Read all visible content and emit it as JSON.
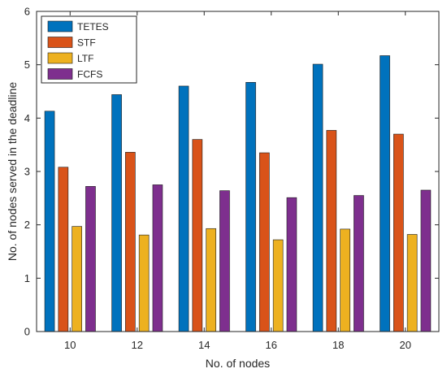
{
  "chart_data": {
    "type": "bar",
    "categories": [
      "10",
      "12",
      "14",
      "16",
      "18",
      "20"
    ],
    "series": [
      {
        "name": "TETES",
        "color": "#0072BD",
        "values": [
          4.13,
          4.44,
          4.6,
          4.67,
          5.01,
          5.17
        ]
      },
      {
        "name": "STF",
        "color": "#D95319",
        "values": [
          3.08,
          3.36,
          3.6,
          3.35,
          3.77,
          3.7
        ]
      },
      {
        "name": "LTF",
        "color": "#EDB120",
        "values": [
          1.97,
          1.81,
          1.93,
          1.72,
          1.92,
          1.82
        ]
      },
      {
        "name": "FCFS",
        "color": "#7E2F8E",
        "values": [
          2.72,
          2.75,
          2.64,
          2.51,
          2.55,
          2.65
        ]
      }
    ],
    "title": "",
    "xlabel": "No. of nodes",
    "ylabel": "No. of nodes served in the deadline",
    "ylim": [
      0,
      6
    ],
    "yticks": [
      0,
      1,
      2,
      3,
      4,
      5,
      6
    ],
    "grid": false,
    "legend": "top-left"
  }
}
